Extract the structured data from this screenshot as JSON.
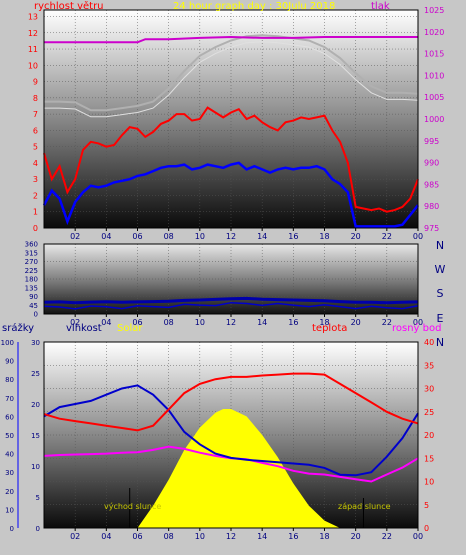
{
  "colors": {
    "page_bg": "#c7c7c7",
    "wind": "#ff0000",
    "wind_avg": "#0000ff",
    "pressure": "#cc00cc",
    "title": "#ffff00",
    "panel_text": "#000080",
    "sun": "#ffff00",
    "temp": "#ff0000",
    "dew": "#ff00ff",
    "humidity": "#0000cc",
    "precip": "#0000ff"
  },
  "chart_data": [
    {
      "id": "wind-pressure",
      "type": "line",
      "title": "24 hour graph day : 30Julu 2018",
      "left_label": "rychlost větru",
      "right_label": "tlak",
      "x_ticks": [
        "02",
        "04",
        "06",
        "08",
        "10",
        "12",
        "14",
        "16",
        "18",
        "20",
        "22",
        "00"
      ],
      "y_left_ticks": [
        "0",
        "1",
        "2",
        "3",
        "4",
        "5",
        "6",
        "7",
        "8",
        "9",
        "10",
        "11",
        "12",
        "13"
      ],
      "y_left_range": [
        0,
        13.4
      ],
      "y_right_ticks": [
        "975",
        "980",
        "985",
        "990",
        "995",
        "1000",
        "1005",
        "1010",
        "1015",
        "1020",
        "1025"
      ],
      "y_right_range": [
        975,
        1025
      ],
      "grid": true,
      "series": [
        {
          "key": "gust",
          "x": [
            0,
            0.5,
            1,
            1.5,
            2,
            2.5,
            3,
            3.5,
            4,
            4.5,
            5,
            5.5,
            6,
            6.5,
            7,
            7.5,
            8,
            8.5,
            9,
            9.5,
            10,
            10.5,
            11,
            11.5,
            12,
            12.5,
            13,
            13.5,
            14,
            14.5,
            15,
            15.5,
            16,
            16.5,
            17,
            17.5,
            18,
            18.5,
            19,
            19.5,
            20,
            20.5,
            21,
            21.5,
            22,
            22.5,
            23,
            23.5,
            24
          ],
          "values": [
            4.6,
            3.0,
            3.8,
            2.2,
            3.0,
            4.8,
            5.3,
            5.2,
            5.0,
            5.1,
            5.7,
            6.2,
            6.1,
            5.6,
            5.9,
            6.4,
            6.6,
            7.0,
            7.0,
            6.6,
            6.7,
            7.4,
            7.1,
            6.8,
            7.1,
            7.3,
            6.7,
            6.9,
            6.5,
            6.2,
            6.0,
            6.5,
            6.6,
            6.8,
            6.7,
            6.8,
            6.9,
            6.0,
            5.3,
            4.0,
            1.3,
            1.2,
            1.1,
            1.2,
            1.0,
            1.1,
            1.3,
            1.8,
            3.0
          ]
        },
        {
          "key": "wind_avg",
          "x": [
            0,
            0.5,
            1,
            1.5,
            2,
            2.5,
            3,
            3.5,
            4,
            4.5,
            5,
            5.5,
            6,
            6.5,
            7,
            7.5,
            8,
            8.5,
            9,
            9.5,
            10,
            10.5,
            11,
            11.5,
            12,
            12.5,
            13,
            13.5,
            14,
            14.5,
            15,
            15.5,
            16,
            16.5,
            17,
            17.5,
            18,
            18.5,
            19,
            19.5,
            20,
            20.5,
            21,
            21.5,
            22,
            22.5,
            23,
            23.5,
            24
          ],
          "values": [
            1.4,
            2.3,
            1.8,
            0.4,
            1.6,
            2.2,
            2.6,
            2.5,
            2.6,
            2.8,
            2.9,
            3.0,
            3.2,
            3.3,
            3.5,
            3.7,
            3.8,
            3.8,
            3.9,
            3.6,
            3.7,
            3.9,
            3.8,
            3.7,
            3.9,
            4.0,
            3.6,
            3.8,
            3.6,
            3.4,
            3.6,
            3.7,
            3.6,
            3.7,
            3.7,
            3.8,
            3.6,
            3.0,
            2.7,
            2.2,
            0.1,
            0.1,
            0.1,
            0.1,
            0.1,
            0.1,
            0.2,
            0.8,
            1.4
          ]
        },
        {
          "key": "pressure",
          "x": [
            0,
            2,
            4,
            6,
            6.5,
            8,
            10,
            12,
            14,
            16,
            18,
            20,
            22,
            24
          ],
          "values": [
            1017.6,
            1017.6,
            1017.6,
            1017.6,
            1018.3,
            1018.3,
            1018.6,
            1018.8,
            1018.6,
            1018.6,
            1018.8,
            1018.8,
            1018.8,
            1018.8
          ]
        },
        {
          "key": "temp_grey",
          "x": [
            0,
            1,
            2,
            3,
            4,
            5,
            6,
            7,
            8,
            9,
            10,
            11,
            12,
            13,
            14,
            15,
            16,
            17,
            18,
            19,
            20,
            21,
            22,
            23,
            24
          ],
          "values": [
            1004.0,
            1004.0,
            1003.8,
            1002.0,
            1002.0,
            1002.5,
            1003.0,
            1004.0,
            1007.0,
            1011.0,
            1014.5,
            1016.5,
            1018.0,
            1019.0,
            1019.2,
            1019.0,
            1018.5,
            1018.0,
            1016.5,
            1014.0,
            1010.5,
            1007.5,
            1006.0,
            1006.0,
            1005.8
          ]
        }
      ]
    },
    {
      "id": "wind-direction",
      "type": "line",
      "x_ticks": [
        "02",
        "04",
        "06",
        "08",
        "10",
        "12",
        "14",
        "16",
        "18",
        "20",
        "22",
        "00"
      ],
      "y_ticks": [
        "0",
        "45",
        "90",
        "135",
        "180",
        "225",
        "270",
        "315",
        "360"
      ],
      "y_range": [
        0,
        360
      ],
      "compass": [
        "N",
        "W",
        "S",
        "E",
        "N"
      ],
      "series": [
        {
          "key": "direction",
          "x": [
            0,
            1,
            2,
            3,
            4,
            5,
            6,
            7,
            8,
            9,
            10,
            11,
            12,
            13,
            14,
            15,
            16,
            17,
            18,
            19,
            20,
            21,
            22,
            23,
            24
          ],
          "values": [
            60,
            62,
            58,
            61,
            63,
            60,
            62,
            64,
            66,
            70,
            72,
            75,
            78,
            80,
            76,
            74,
            72,
            70,
            68,
            64,
            60,
            60,
            58,
            60,
            62
          ]
        }
      ]
    },
    {
      "id": "humidity-temp",
      "type": "line",
      "labels": [
        "srážky",
        "vlhkost",
        "Solar",
        "teplota",
        "rosný bod"
      ],
      "x_ticks": [
        "02",
        "04",
        "06",
        "08",
        "10",
        "12",
        "14",
        "16",
        "18",
        "20",
        "22",
        "00"
      ],
      "y_precip_ticks": [
        "0",
        "10",
        "20",
        "30",
        "40",
        "50",
        "60",
        "70",
        "80",
        "90",
        "100"
      ],
      "y_hum_ticks": [
        "0",
        "5",
        "10",
        "15",
        "20",
        "25",
        "30"
      ],
      "y_hum_range": [
        0,
        30
      ],
      "y_temp_ticks": [
        "0",
        "5",
        "10",
        "15",
        "20",
        "25",
        "30",
        "35",
        "40"
      ],
      "y_temp_range": [
        0,
        40
      ],
      "annotations": [
        "východ slunce",
        "západ slunce"
      ],
      "series": [
        {
          "key": "teplota",
          "x": [
            0,
            1,
            2,
            3,
            4,
            5,
            6,
            7,
            8,
            9,
            10,
            11,
            12,
            13,
            14,
            15,
            16,
            17,
            18,
            19,
            20,
            21,
            22,
            23,
            24
          ],
          "values": [
            24.5,
            23.5,
            23.0,
            22.5,
            22.0,
            21.5,
            21.0,
            22.0,
            25.5,
            29.0,
            31.0,
            32.0,
            32.5,
            32.5,
            32.8,
            33.0,
            33.2,
            33.2,
            33.0,
            31.0,
            29.0,
            27.0,
            25.0,
            23.5,
            22.5
          ]
        },
        {
          "key": "vlhkost",
          "x": [
            0,
            1,
            2,
            3,
            4,
            5,
            6,
            7,
            8,
            9,
            10,
            11,
            12,
            13,
            14,
            15,
            16,
            17,
            18,
            19,
            20,
            21,
            22,
            23,
            24
          ],
          "values": [
            18.0,
            19.5,
            20.0,
            20.5,
            21.5,
            22.5,
            23.0,
            21.5,
            19.0,
            15.5,
            13.5,
            12.0,
            11.3,
            11.0,
            10.8,
            10.6,
            10.4,
            10.2,
            9.7,
            8.6,
            8.5,
            9.0,
            11.5,
            14.5,
            18.5
          ]
        },
        {
          "key": "rosny_bod",
          "x": [
            0,
            1,
            2,
            3,
            4,
            5,
            6,
            7,
            8,
            9,
            10,
            11,
            12,
            13,
            14,
            15,
            16,
            17,
            18,
            19,
            20,
            21,
            22,
            23,
            24
          ],
          "values": [
            15.5,
            15.7,
            15.8,
            15.9,
            16.0,
            16.2,
            16.3,
            16.8,
            17.5,
            17.0,
            16.2,
            15.5,
            15.0,
            14.8,
            14.0,
            13.3,
            12.3,
            11.7,
            11.5,
            11.0,
            10.5,
            10.0,
            11.5,
            13.0,
            15.0
          ]
        },
        {
          "key": "solar",
          "x": [
            6,
            7,
            8,
            9,
            10,
            11,
            11.5,
            12,
            13,
            14,
            15,
            16,
            17,
            18,
            19,
            20.5
          ],
          "values": [
            0,
            12,
            26,
            42,
            54,
            62,
            64,
            64,
            60,
            50,
            38,
            24,
            12,
            4,
            0,
            0
          ]
        }
      ]
    }
  ]
}
